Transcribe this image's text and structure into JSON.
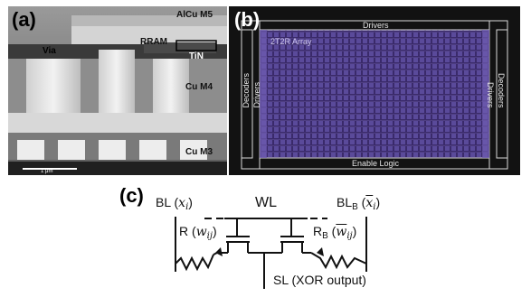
{
  "panel_a": {
    "label": "(a)",
    "annotations": {
      "alcu": "AlCu M5",
      "rram": "RRAM",
      "via": "Via",
      "tin": "TiN",
      "cu_m4": "Cu M4",
      "cu_m3": "Cu M3"
    },
    "scale_bar": "1 μm"
  },
  "panel_b": {
    "label": "(b)",
    "drivers_top": "Drivers",
    "array": "2T2R Array",
    "decoders_left": "Decoders",
    "drivers_left": "Drivers",
    "decoders_right": "Decoders",
    "drivers_right": "Drivers",
    "enable_logic": "Enable Logic"
  },
  "panel_c": {
    "label": "(c)",
    "bl": "BL",
    "bl_var": "x",
    "bl_sub": "i",
    "wl": "WL",
    "blb": "BL",
    "blb_sub": "B",
    "blb_var": "x",
    "blb_var_sub": "i",
    "r": "R",
    "r_var": "w",
    "r_sub": "ij",
    "rb": "R",
    "rb_sub": "B",
    "rb_var": "w",
    "rb_var_sub": "ij",
    "sl": "SL (XOR output)"
  }
}
